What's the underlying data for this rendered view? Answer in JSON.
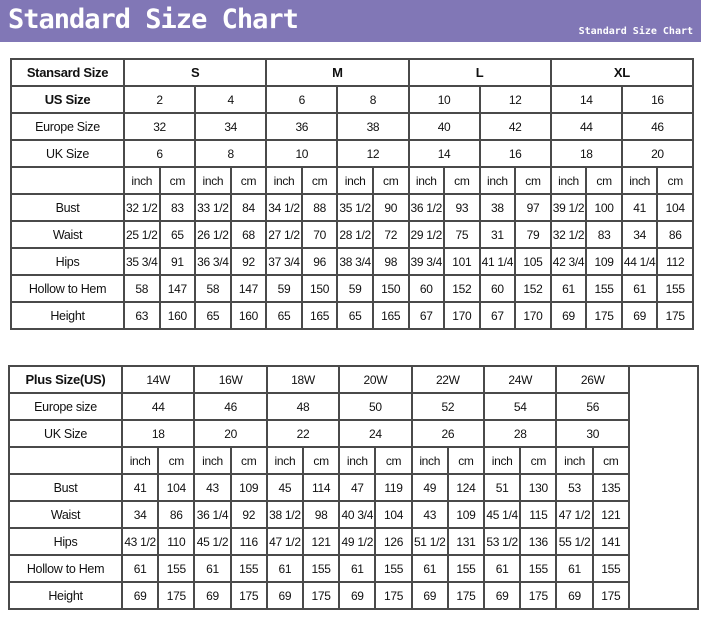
{
  "banner": {
    "title": "Standard Size Chart",
    "subtitle": "Standard Size Chart",
    "color": "#8177b6"
  },
  "standard": {
    "header_label": "Stansard Size",
    "groups": [
      "S",
      "M",
      "L",
      "XL"
    ],
    "us_label": "US Size",
    "us": [
      "2",
      "4",
      "6",
      "8",
      "10",
      "12",
      "14",
      "16"
    ],
    "europe_label": "Europe Size",
    "europe": [
      "32",
      "34",
      "36",
      "38",
      "40",
      "42",
      "44",
      "46"
    ],
    "uk_label": "UK Size",
    "uk": [
      "6",
      "8",
      "10",
      "12",
      "14",
      "16",
      "18",
      "20"
    ],
    "units": [
      "inch",
      "cm"
    ],
    "rows": [
      {
        "label": "Bust",
        "values": [
          "32 1/2",
          "83",
          "33 1/2",
          "84",
          "34 1/2",
          "88",
          "35 1/2",
          "90",
          "36 1/2",
          "93",
          "38",
          "97",
          "39 1/2",
          "100",
          "41",
          "104"
        ]
      },
      {
        "label": "Waist",
        "values": [
          "25 1/2",
          "65",
          "26 1/2",
          "68",
          "27 1/2",
          "70",
          "28 1/2",
          "72",
          "29 1/2",
          "75",
          "31",
          "79",
          "32 1/2",
          "83",
          "34",
          "86"
        ]
      },
      {
        "label": "Hips",
        "values": [
          "35 3/4",
          "91",
          "36 3/4",
          "92",
          "37 3/4",
          "96",
          "38 3/4",
          "98",
          "39 3/4",
          "101",
          "41 1/4",
          "105",
          "42 3/4",
          "109",
          "44 1/4",
          "112"
        ]
      },
      {
        "label": "Hollow to Hem",
        "values": [
          "58",
          "147",
          "58",
          "147",
          "59",
          "150",
          "59",
          "150",
          "60",
          "152",
          "60",
          "152",
          "61",
          "155",
          "61",
          "155"
        ]
      },
      {
        "label": "Height",
        "values": [
          "63",
          "160",
          "65",
          "160",
          "65",
          "165",
          "65",
          "165",
          "67",
          "170",
          "67",
          "170",
          "69",
          "175",
          "69",
          "175"
        ]
      }
    ]
  },
  "plus": {
    "header_label": "Plus Size(US)",
    "sizes": [
      "14W",
      "16W",
      "18W",
      "20W",
      "22W",
      "24W",
      "26W"
    ],
    "europe_label": "Europe size",
    "europe": [
      "44",
      "46",
      "48",
      "50",
      "52",
      "54",
      "56"
    ],
    "uk_label": "UK Size",
    "uk": [
      "18",
      "20",
      "22",
      "24",
      "26",
      "28",
      "30"
    ],
    "units": [
      "inch",
      "cm"
    ],
    "rows": [
      {
        "label": "Bust",
        "values": [
          "41",
          "104",
          "43",
          "109",
          "45",
          "114",
          "47",
          "119",
          "49",
          "124",
          "51",
          "130",
          "53",
          "135"
        ]
      },
      {
        "label": "Waist",
        "values": [
          "34",
          "86",
          "36 1/4",
          "92",
          "38 1/2",
          "98",
          "40 3/4",
          "104",
          "43",
          "109",
          "45 1/4",
          "115",
          "47 1/2",
          "121"
        ]
      },
      {
        "label": "Hips",
        "values": [
          "43 1/2",
          "110",
          "45 1/2",
          "116",
          "47 1/2",
          "121",
          "49 1/2",
          "126",
          "51 1/2",
          "131",
          "53 1/2",
          "136",
          "55 1/2",
          "141"
        ]
      },
      {
        "label": "Hollow to Hem",
        "values": [
          "61",
          "155",
          "61",
          "155",
          "61",
          "155",
          "61",
          "155",
          "61",
          "155",
          "61",
          "155",
          "61",
          "155"
        ]
      },
      {
        "label": "Height",
        "values": [
          "69",
          "175",
          "69",
          "175",
          "69",
          "175",
          "69",
          "175",
          "69",
          "175",
          "69",
          "175",
          "69",
          "175"
        ]
      }
    ]
  }
}
